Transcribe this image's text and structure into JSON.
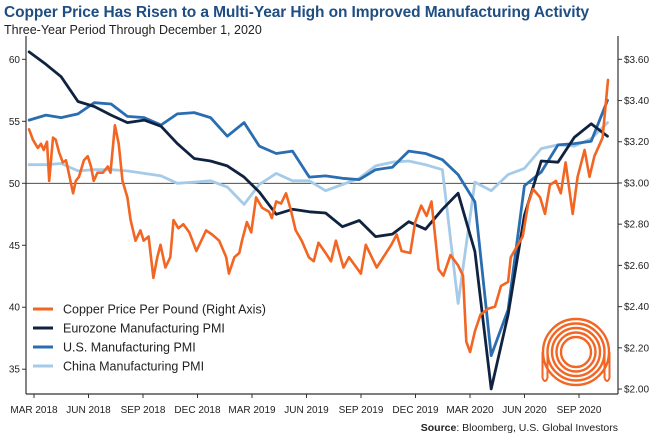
{
  "chart_data": {
    "type": "line",
    "title": "Copper Price Has Risen to a Multi-Year High on Improved Manufacturing Activity",
    "subtitle": "Three-Year Period Through December 1, 2020",
    "source_label": "Source",
    "source_text": ": Bloomberg, U.S. Global Investors",
    "left_axis": {
      "ylim": [
        33,
        61.4
      ],
      "ticks": [
        35,
        40,
        45,
        50,
        55,
        60
      ],
      "reference_line": 50
    },
    "right_axis": {
      "ylim": [
        1.976,
        3.684
      ],
      "ticks": [
        "$2.00",
        "$2.20",
        "$2.40",
        "$2.60",
        "$2.80",
        "$3.00",
        "$3.20",
        "$3.40",
        "$3.60"
      ],
      "tick_values": [
        2.0,
        2.2,
        2.4,
        2.6,
        2.8,
        3.0,
        3.2,
        3.4,
        3.6
      ]
    },
    "x_ticks": [
      "MAR 2018",
      "JUN 2018",
      "SEP 2018",
      "DEC 2018",
      "MAR 2019",
      "JUN 2019",
      "SEP 2019",
      "DEC 2019",
      "MAR 2020",
      "JUN 2020",
      "SEP 2020"
    ],
    "x_range": [
      "2017-12-29",
      "2020-12-01"
    ],
    "grid": false,
    "legend_placement": "bottom-left",
    "series": [
      {
        "name": "Copper Price Per Pound (Right Axis)",
        "axis": "right",
        "color": "#f26522",
        "points": [
          [
            "2017-12-31",
            3.26
          ],
          [
            "2018-01-07",
            3.21
          ],
          [
            "2018-01-16",
            3.17
          ],
          [
            "2018-01-22",
            3.19
          ],
          [
            "2018-01-27",
            3.16
          ],
          [
            "2018-02-02",
            3.2
          ],
          [
            "2018-02-06",
            3.01
          ],
          [
            "2018-02-13",
            3.22
          ],
          [
            "2018-02-18",
            3.21
          ],
          [
            "2018-02-24",
            3.15
          ],
          [
            "2018-03-03",
            3.1
          ],
          [
            "2018-03-09",
            3.11
          ],
          [
            "2018-03-14",
            3.05
          ],
          [
            "2018-03-22",
            2.95
          ],
          [
            "2018-03-27",
            3.01
          ],
          [
            "2018-04-02",
            3.03
          ],
          [
            "2018-04-11",
            3.11
          ],
          [
            "2018-04-18",
            3.13
          ],
          [
            "2018-04-24",
            3.08
          ],
          [
            "2018-04-29",
            3.01
          ],
          [
            "2018-05-06",
            3.05
          ],
          [
            "2018-05-16",
            3.05
          ],
          [
            "2018-05-25",
            3.08
          ],
          [
            "2018-05-30",
            3.05
          ],
          [
            "2018-06-07",
            3.28
          ],
          [
            "2018-06-14",
            3.19
          ],
          [
            "2018-06-21",
            3.01
          ],
          [
            "2018-06-30",
            2.93
          ],
          [
            "2018-07-06",
            2.82
          ],
          [
            "2018-07-15",
            2.72
          ],
          [
            "2018-07-24",
            2.77
          ],
          [
            "2018-07-30",
            2.72
          ],
          [
            "2018-08-08",
            2.74
          ],
          [
            "2018-08-17",
            2.54
          ],
          [
            "2018-08-24",
            2.64
          ],
          [
            "2018-08-30",
            2.7
          ],
          [
            "2018-09-08",
            2.59
          ],
          [
            "2018-09-17",
            2.64
          ],
          [
            "2018-09-23",
            2.82
          ],
          [
            "2018-10-02",
            2.78
          ],
          [
            "2018-10-11",
            2.8
          ],
          [
            "2018-10-22",
            2.76
          ],
          [
            "2018-11-04",
            2.67
          ],
          [
            "2018-11-22",
            2.77
          ],
          [
            "2018-12-03",
            2.75
          ],
          [
            "2018-12-16",
            2.72
          ],
          [
            "2018-12-29",
            2.64
          ],
          [
            "2019-01-03",
            2.56
          ],
          [
            "2019-01-13",
            2.64
          ],
          [
            "2019-01-22",
            2.66
          ],
          [
            "2019-01-27",
            2.72
          ],
          [
            "2019-02-05",
            2.81
          ],
          [
            "2019-02-13",
            2.76
          ],
          [
            "2019-02-22",
            2.93
          ],
          [
            "2019-03-05",
            2.88
          ],
          [
            "2019-03-18",
            2.86
          ],
          [
            "2019-03-23",
            2.83
          ],
          [
            "2019-03-31",
            2.91
          ],
          [
            "2019-04-09",
            2.9
          ],
          [
            "2019-04-18",
            2.95
          ],
          [
            "2019-04-27",
            2.87
          ],
          [
            "2019-05-06",
            2.77
          ],
          [
            "2019-05-17",
            2.72
          ],
          [
            "2019-05-30",
            2.64
          ],
          [
            "2019-06-08",
            2.62
          ],
          [
            "2019-06-17",
            2.71
          ],
          [
            "2019-06-30",
            2.66
          ],
          [
            "2019-07-10",
            2.62
          ],
          [
            "2019-07-19",
            2.72
          ],
          [
            "2019-08-02",
            2.59
          ],
          [
            "2019-08-12",
            2.64
          ],
          [
            "2019-09-03",
            2.56
          ],
          [
            "2019-09-12",
            2.7
          ],
          [
            "2019-10-02",
            2.59
          ],
          [
            "2019-10-29",
            2.7
          ],
          [
            "2019-11-08",
            2.75
          ],
          [
            "2019-11-17",
            2.67
          ],
          [
            "2019-12-03",
            2.66
          ],
          [
            "2019-12-12",
            2.81
          ],
          [
            "2019-12-23",
            2.89
          ],
          [
            "2020-01-02",
            2.84
          ],
          [
            "2020-01-11",
            2.91
          ],
          [
            "2020-01-24",
            2.58
          ],
          [
            "2020-02-02",
            2.55
          ],
          [
            "2020-02-15",
            2.65
          ],
          [
            "2020-02-29",
            2.6
          ],
          [
            "2020-03-09",
            2.55
          ],
          [
            "2020-03-15",
            2.23
          ],
          [
            "2020-03-22",
            2.18
          ],
          [
            "2020-03-31",
            2.28
          ],
          [
            "2020-04-10",
            2.36
          ],
          [
            "2020-04-24",
            2.39
          ],
          [
            "2020-05-07",
            2.4
          ],
          [
            "2020-05-18",
            2.5
          ],
          [
            "2020-05-31",
            2.52
          ],
          [
            "2020-06-05",
            2.64
          ],
          [
            "2020-06-18",
            2.7
          ],
          [
            "2020-06-27",
            2.74
          ],
          [
            "2020-07-07",
            2.9
          ],
          [
            "2020-07-16",
            2.97
          ],
          [
            "2020-07-29",
            2.93
          ],
          [
            "2020-08-07",
            2.85
          ],
          [
            "2020-08-16",
            2.99
          ],
          [
            "2020-08-27",
            3.01
          ],
          [
            "2020-09-05",
            2.95
          ],
          [
            "2020-09-14",
            3.1
          ],
          [
            "2020-09-27",
            2.85
          ],
          [
            "2020-10-06",
            3.03
          ],
          [
            "2020-10-19",
            3.16
          ],
          [
            "2020-10-28",
            3.03
          ],
          [
            "2020-11-06",
            3.13
          ],
          [
            "2020-11-16",
            3.19
          ],
          [
            "2020-11-21",
            3.22
          ],
          [
            "2020-12-01",
            3.5
          ]
        ]
      },
      {
        "name": "Eurozone Manufacturing PMI",
        "axis": "left",
        "color": "#0f2340",
        "months": [
          "2017-12",
          "2018-01",
          "2018-02",
          "2018-03",
          "2018-04",
          "2018-05",
          "2018-06",
          "2018-07",
          "2018-08",
          "2018-09",
          "2018-10",
          "2018-11",
          "2018-12",
          "2019-01",
          "2019-02",
          "2019-03",
          "2019-04",
          "2019-05",
          "2019-06",
          "2019-07",
          "2019-08",
          "2019-09",
          "2019-10",
          "2019-11",
          "2019-12",
          "2020-01",
          "2020-02",
          "2020-03",
          "2020-04",
          "2020-05",
          "2020-06",
          "2020-07",
          "2020-08",
          "2020-09",
          "2020-10",
          "2020-11"
        ],
        "values": [
          60.6,
          59.6,
          58.6,
          56.6,
          56.2,
          55.5,
          54.9,
          55.1,
          54.6,
          53.2,
          52.0,
          51.8,
          51.4,
          50.5,
          49.3,
          47.5,
          47.9,
          47.7,
          47.6,
          46.5,
          47.0,
          45.7,
          45.9,
          46.9,
          46.3,
          47.9,
          49.2,
          44.5,
          33.4,
          39.4,
          47.4,
          51.8,
          51.7,
          53.7,
          54.8,
          53.8
        ]
      },
      {
        "name": "U.S. Manufacturing PMI",
        "axis": "left",
        "color": "#2a6db0",
        "months": [
          "2017-12",
          "2018-01",
          "2018-02",
          "2018-03",
          "2018-04",
          "2018-05",
          "2018-06",
          "2018-07",
          "2018-08",
          "2018-09",
          "2018-10",
          "2018-11",
          "2018-12",
          "2019-01",
          "2019-02",
          "2019-03",
          "2019-04",
          "2019-05",
          "2019-06",
          "2019-07",
          "2019-08",
          "2019-09",
          "2019-10",
          "2019-11",
          "2019-12",
          "2020-01",
          "2020-02",
          "2020-03",
          "2020-04",
          "2020-05",
          "2020-06",
          "2020-07",
          "2020-08",
          "2020-09",
          "2020-10",
          "2020-11"
        ],
        "values": [
          55.1,
          55.5,
          55.3,
          55.6,
          56.5,
          56.4,
          55.4,
          55.3,
          54.7,
          55.6,
          55.7,
          55.3,
          53.8,
          54.9,
          53.0,
          52.4,
          52.6,
          50.5,
          50.6,
          50.4,
          50.3,
          51.1,
          51.3,
          52.6,
          52.4,
          51.9,
          50.7,
          48.5,
          36.1,
          39.8,
          49.8,
          50.9,
          53.1,
          53.2,
          53.4,
          56.7
        ]
      },
      {
        "name": "China Manufacturing PMI",
        "axis": "left",
        "color": "#a6cbe8",
        "months": [
          "2017-12",
          "2018-01",
          "2018-02",
          "2018-03",
          "2018-04",
          "2018-05",
          "2018-06",
          "2018-07",
          "2018-08",
          "2018-09",
          "2018-10",
          "2018-11",
          "2018-12",
          "2019-01",
          "2019-02",
          "2019-03",
          "2019-04",
          "2019-05",
          "2019-06",
          "2019-07",
          "2019-08",
          "2019-09",
          "2019-10",
          "2019-11",
          "2019-12",
          "2020-01",
          "2020-02",
          "2020-03",
          "2020-04",
          "2020-05",
          "2020-06",
          "2020-07",
          "2020-08",
          "2020-09",
          "2020-10",
          "2020-11"
        ],
        "values": [
          51.5,
          51.5,
          51.6,
          51.0,
          51.1,
          51.1,
          51.0,
          50.8,
          50.6,
          50.0,
          50.1,
          50.2,
          49.7,
          48.3,
          49.9,
          50.8,
          50.2,
          50.2,
          49.4,
          49.9,
          50.4,
          51.4,
          51.7,
          51.8,
          51.5,
          51.1,
          40.3,
          50.1,
          49.4,
          50.7,
          51.2,
          52.8,
          53.1,
          53.0,
          53.6,
          54.9
        ]
      }
    ],
    "logo": "copper-coil-icon"
  }
}
